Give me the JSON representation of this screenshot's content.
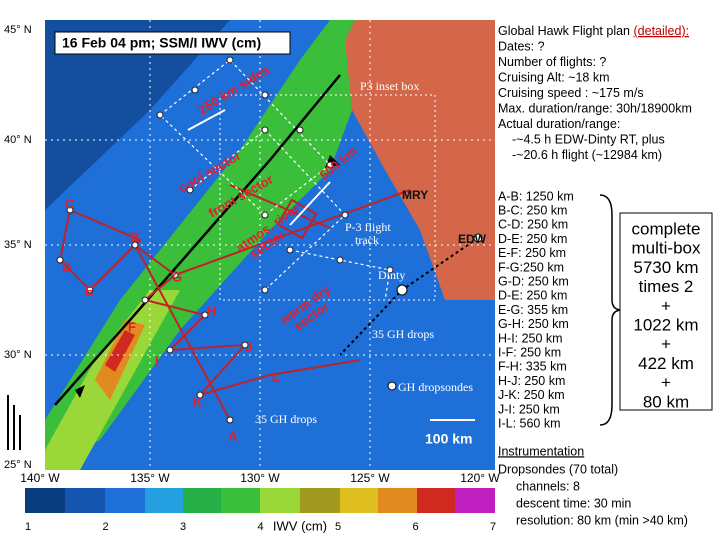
{
  "map": {
    "title": "16 Feb 04 pm; SSM/I IWV (cm)",
    "lat_labels": [
      "45° N",
      "40° N",
      "35° N",
      "30° N",
      "25° N"
    ],
    "lon_labels": [
      "140° W",
      "135° W",
      "130° W",
      "125° W",
      "120° W"
    ],
    "colorbar_ticks": [
      "1",
      "2",
      "3",
      "4",
      "5",
      "6",
      "7"
    ],
    "colorbar_label": "IWV (cm)",
    "annotations": {
      "p3_inset_box": "P3 inset box",
      "sides": "250 km sides",
      "five_hundred": "500 km",
      "cool_sector": "cool sector",
      "front_sector": "front sector",
      "atmos_sector": [
        "atmos. river",
        "sector"
      ],
      "warm_sector": [
        "warm dry",
        "sector"
      ],
      "mry": "MRY",
      "edw": "EDW",
      "p3_track": [
        "P-3 flight",
        "track"
      ],
      "dinty": "Dinty",
      "drops_1": "35 GH drops",
      "drops_2": "35 GH drops",
      "dropsondes": "GH dropsondes",
      "scale": "100 km"
    },
    "waypoint_letters": [
      "A",
      "B",
      "C",
      "D",
      "E",
      "F",
      "G",
      "H",
      "I",
      "J",
      "K",
      "L"
    ]
  },
  "plan": {
    "title": "Global Hawk Flight plan",
    "title_note": "(detailed):",
    "lines": [
      "Dates: ?",
      "Number of flights: ?",
      "Cruising Alt: ~18 km",
      "Cruising speed : ~175 m/s",
      "Max. duration/range: 30h/18900km",
      "Actual duration/range:",
      "-~4.5 h EDW-Dinty RT, plus",
      "-~20.6 h flight (~12984 km)"
    ],
    "legs": [
      "A-B: 1250 km",
      "B-C: 250 km",
      "C-D: 250 km",
      "D-E: 250 km",
      "E-F: 250 km",
      "F-G:250 km",
      "G-D: 250 km",
      "D-E: 250 km",
      "E-G: 355 km",
      "G-H: 250 km",
      "H-I: 250 km",
      "I-F: 250 km",
      "F-H: 335 km",
      "H-J: 250 km",
      "J-K: 250 km",
      "J-I: 250 km",
      "I-L: 560 km"
    ],
    "totals": [
      "complete",
      "multi-box",
      "5730 km",
      "times 2",
      "+",
      "1022 km",
      "+",
      "422 km",
      "+",
      "80 km"
    ]
  },
  "instrumentation": {
    "title": "Instrumentation",
    "lines": [
      "Dropsondes (70 total)",
      "channels: 8",
      "descent time: 30 min",
      "resolution: 80 km (min >40 km)"
    ]
  }
}
